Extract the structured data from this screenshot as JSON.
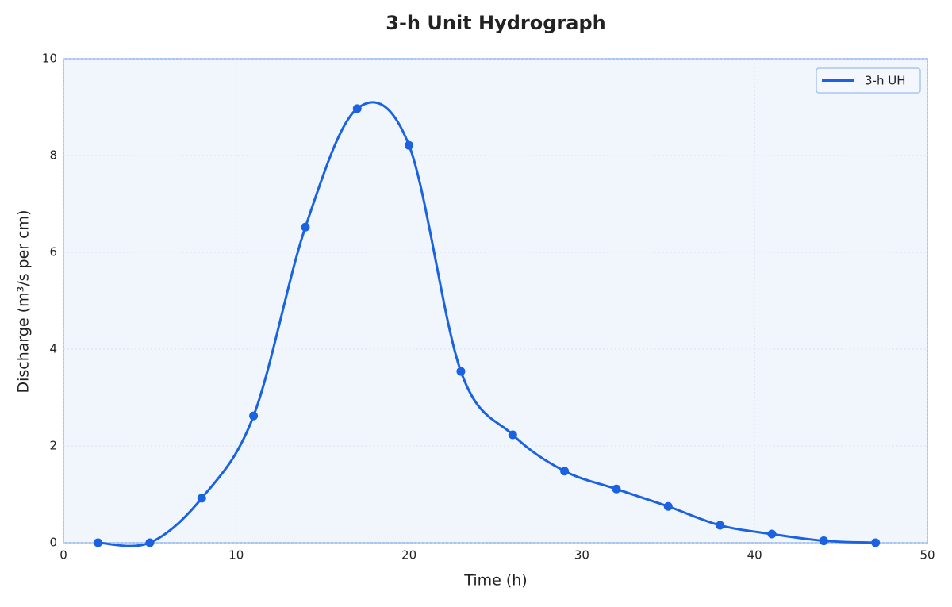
{
  "chart_data": {
    "type": "line",
    "title": "3-h Unit Hydrograph",
    "x_label": "Time (h)",
    "y_label": "Discharge (m³/s per cm)",
    "x": [
      2,
      5,
      8,
      11,
      14,
      17,
      20,
      23,
      26,
      29,
      32,
      35,
      38,
      41,
      44,
      47
    ],
    "series": [
      {
        "name": "3-h UH",
        "color": "#1a62e0",
        "values": [
          0,
          0,
          0.92,
          2.62,
          6.52,
          8.97,
          8.21,
          3.54,
          2.23,
          1.48,
          1.11,
          0.75,
          0.36,
          0.18,
          0.04,
          0
        ]
      }
    ],
    "xlim": [
      0,
      50
    ],
    "xticks": [
      0,
      10,
      20,
      30,
      40,
      50
    ],
    "ylim": [
      0,
      10
    ],
    "yticks": [
      0,
      2,
      4,
      6,
      8,
      10
    ],
    "grid": true,
    "legend": "upper right"
  }
}
